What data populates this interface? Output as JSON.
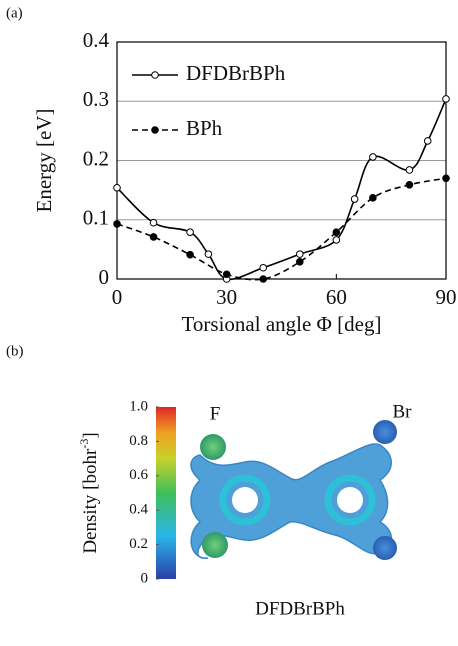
{
  "panel_labels": [
    "(a)",
    "(b)"
  ],
  "chart_data": {
    "type": "line",
    "x_label": "Torsional angle Φ [deg]",
    "y_label": "Energy [eV]",
    "xlim": [
      0,
      90
    ],
    "ylim": [
      0,
      0.4
    ],
    "xticks": [
      0,
      30,
      60,
      90
    ],
    "yticks": [
      0,
      0.1,
      0.2,
      0.3,
      0.4
    ],
    "grid": true,
    "legend": "upper left",
    "series": [
      {
        "name": "DFDBrBPh",
        "color": "#000000",
        "style": "solid",
        "marker": "open",
        "x": [
          0,
          10,
          20,
          25,
          30,
          40,
          50,
          60,
          65,
          70,
          80,
          85,
          90
        ],
        "values": [
          0.154,
          0.095,
          0.079,
          0.042,
          0.0,
          0.019,
          0.042,
          0.066,
          0.135,
          0.206,
          0.184,
          0.233,
          0.304
        ]
      },
      {
        "name": "BPh",
        "color": "#000000",
        "style": "dashed",
        "marker": "filled",
        "x": [
          0,
          10,
          20,
          30,
          40,
          50,
          60,
          70,
          80,
          90
        ],
        "values": [
          0.093,
          0.071,
          0.041,
          0.008,
          0.0,
          0.029,
          0.079,
          0.137,
          0.159,
          0.17
        ]
      }
    ]
  },
  "density_map": {
    "molecule": "DFDBrBPh",
    "atom_labels": [
      "F",
      "Br"
    ],
    "colorbar": {
      "label": "Density [bohr",
      "label_superscript": "-3",
      "label_end": "]",
      "lim": [
        0,
        1
      ],
      "ticks": [
        0,
        0.2,
        0.4,
        0.6,
        0.8,
        {
          "value": 1,
          "label": "1.0"
        }
      ]
    }
  }
}
